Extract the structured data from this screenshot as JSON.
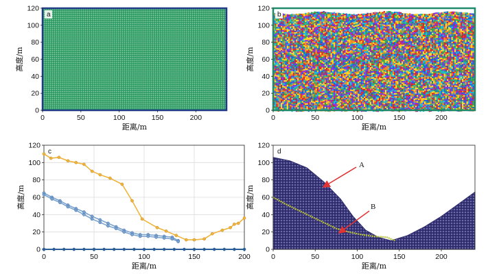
{
  "chart_data": [
    {
      "panel": "a",
      "type": "scatter",
      "description_visible": "dense particle assembly",
      "xlabel": "距离/m",
      "ylabel": "高度/m",
      "xlim": [
        0,
        240
      ],
      "ylim": [
        0,
        120
      ],
      "xticks": [
        0,
        50,
        100,
        150,
        200
      ],
      "yticks": [
        0,
        20,
        40,
        60,
        80,
        100,
        120
      ],
      "colors": {
        "fill": "#2f9a66",
        "light": "#8fd0a7",
        "border": "#1f3a86"
      }
    },
    {
      "panel": "b",
      "type": "scatter",
      "xlabel": "距离/m",
      "ylabel": "高度/m",
      "xlim": [
        0,
        240
      ],
      "ylim": [
        0,
        120
      ],
      "xticks": [
        0,
        50,
        100,
        150,
        200
      ],
      "yticks": [
        0,
        20,
        40,
        60,
        80,
        100,
        120
      ],
      "colors": {
        "palette": [
          "#d7262b",
          "#1f5fd6",
          "#ffd61e",
          "#2fa84f",
          "#18b6d8",
          "#f08a1c",
          "#8a2be2"
        ],
        "border": "#1f8a6a"
      }
    },
    {
      "panel": "c",
      "type": "line",
      "xlabel": "距离/m",
      "ylabel": "高度/m",
      "xlim": [
        0,
        200
      ],
      "ylim": [
        0,
        120
      ],
      "xticks": [
        0,
        50,
        100,
        150,
        200
      ],
      "yticks": [
        0,
        20,
        40,
        60,
        80,
        100,
        120
      ],
      "grid": true,
      "series": [
        {
          "color": "#f0b43a",
          "x": [
            0,
            7,
            15,
            24,
            32,
            40,
            48,
            56,
            66,
            78,
            88,
            98,
            113,
            122,
            132,
            142,
            150,
            160,
            168,
            178,
            186,
            190,
            194,
            200
          ],
          "y": [
            110,
            105,
            106,
            102,
            100,
            98,
            90,
            86,
            82,
            75,
            56,
            35,
            25,
            21,
            16,
            11,
            11,
            12,
            18,
            22,
            25,
            29,
            30,
            36
          ]
        },
        {
          "color": "#7aa3cf",
          "x": [
            0,
            8,
            16,
            24,
            32,
            40,
            48,
            56,
            64,
            72,
            80,
            88,
            96,
            104,
            112,
            120,
            128,
            134
          ],
          "y": [
            65,
            60,
            56,
            51,
            47,
            43,
            38,
            34,
            30,
            26,
            22,
            19,
            17,
            17,
            16,
            15,
            14,
            10
          ]
        },
        {
          "color": "#7aa3cf",
          "x": [
            0,
            8,
            16,
            24,
            32,
            40,
            48,
            56,
            64,
            72,
            80,
            88,
            96,
            104,
            112,
            120,
            128,
            134
          ],
          "y": [
            63,
            58,
            54,
            49,
            45,
            40,
            35,
            31,
            27,
            24,
            20,
            17,
            15,
            15,
            14,
            13,
            12,
            9
          ]
        },
        {
          "color": "#2a5d96",
          "x": [
            0,
            10,
            20,
            30,
            40,
            50,
            60,
            70,
            80,
            90,
            100,
            110,
            120,
            130,
            140,
            150,
            160,
            170,
            180,
            190,
            200
          ],
          "y": [
            0,
            0,
            0,
            0,
            0,
            0,
            0,
            0,
            0,
            0,
            0,
            0,
            0,
            0,
            0,
            0,
            0,
            0,
            0,
            0,
            0
          ]
        }
      ]
    },
    {
      "panel": "d",
      "type": "scatter",
      "xlabel": "距离/m",
      "ylabel": "高度/m",
      "xlim": [
        0,
        240
      ],
      "ylim": [
        0,
        120
      ],
      "xticks": [
        0,
        50,
        100,
        150,
        200
      ],
      "yticks": [
        0,
        20,
        40,
        60,
        80,
        100,
        120
      ],
      "annotations": [
        "A",
        "B"
      ],
      "colors": {
        "fill": "#2c2a6b",
        "band": "#b8c23a",
        "arrow": "#e03434"
      },
      "profile": {
        "x": [
          0,
          20,
          40,
          60,
          80,
          95,
          110,
          125,
          140,
          160,
          180,
          200,
          220,
          240
        ],
        "y": [
          106,
          102,
          94,
          78,
          58,
          38,
          22,
          14,
          10,
          16,
          26,
          38,
          52,
          66
        ]
      },
      "band_line": {
        "x": [
          0,
          15,
          30,
          45,
          60,
          75,
          90,
          105,
          120,
          135,
          145
        ],
        "y": [
          60,
          52,
          45,
          38,
          31,
          24,
          20,
          17,
          15,
          14,
          10
        ]
      }
    }
  ]
}
